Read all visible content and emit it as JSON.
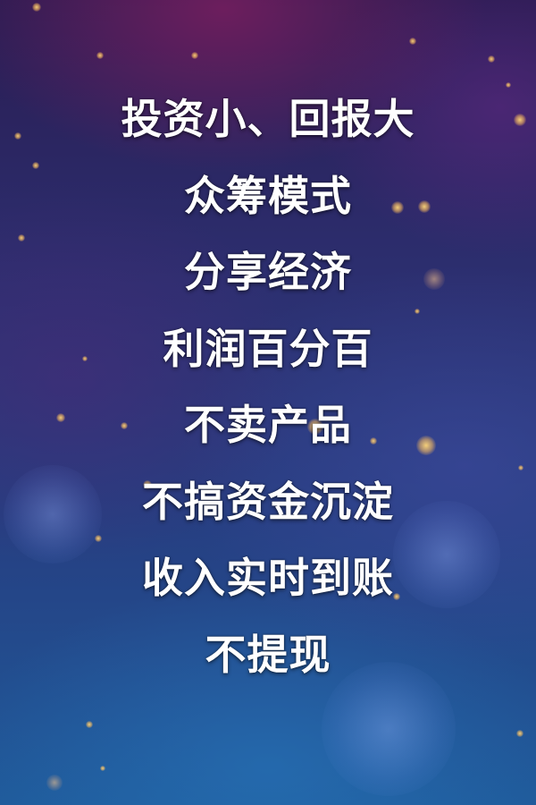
{
  "lines": [
    "投资小、回报大",
    "众筹模式",
    "分享经济",
    "利润百分百",
    "不卖产品",
    "不搞资金沉淀",
    "收入实时到账",
    "不提现"
  ],
  "colors": {
    "text": "#ffffff",
    "background_top": "#2a1c52",
    "background_bottom": "#1f5a9a",
    "bokeh": "#ffd678"
  }
}
